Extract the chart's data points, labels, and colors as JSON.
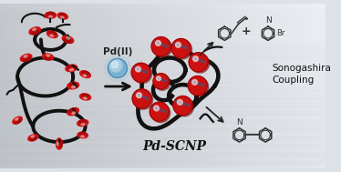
{
  "bg_color": "#e8ecf0",
  "chain_color": "#111111",
  "chain_lw": 2.8,
  "pendant_red": "#cc1111",
  "pendant_dark": "#880000",
  "sphere_blue": "#6fa8c8",
  "pd_label": "Pd(II)",
  "title": "Pd-SCNP",
  "sonogashira": "Sonogashira\nCoupling",
  "structure_color": "#333333",
  "figsize": [
    3.74,
    1.89
  ],
  "dpi": 100
}
